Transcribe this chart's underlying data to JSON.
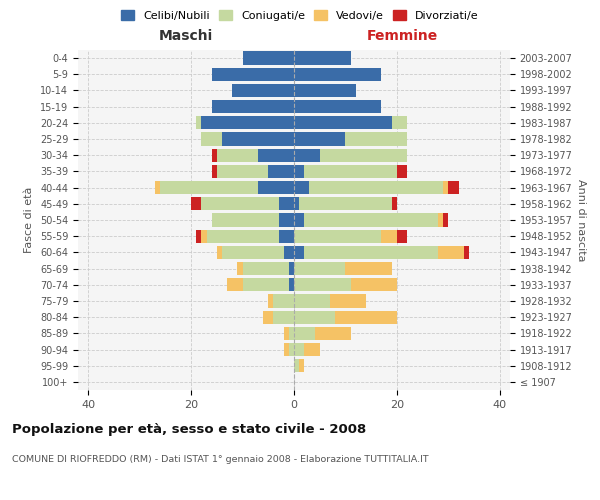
{
  "age_groups": [
    "100+",
    "95-99",
    "90-94",
    "85-89",
    "80-84",
    "75-79",
    "70-74",
    "65-69",
    "60-64",
    "55-59",
    "50-54",
    "45-49",
    "40-44",
    "35-39",
    "30-34",
    "25-29",
    "20-24",
    "15-19",
    "10-14",
    "5-9",
    "0-4"
  ],
  "birth_years": [
    "≤ 1907",
    "1908-1912",
    "1913-1917",
    "1918-1922",
    "1923-1927",
    "1928-1932",
    "1933-1937",
    "1938-1942",
    "1943-1947",
    "1948-1952",
    "1953-1957",
    "1958-1962",
    "1963-1967",
    "1968-1972",
    "1973-1977",
    "1978-1982",
    "1983-1987",
    "1988-1992",
    "1993-1997",
    "1998-2002",
    "2003-2007"
  ],
  "colors": {
    "celibi": "#3a6ca8",
    "coniugati": "#c5d9a0",
    "vedovi": "#f5c265",
    "divorziati": "#cc2222"
  },
  "maschi": {
    "celibi": [
      0,
      0,
      0,
      0,
      0,
      0,
      1,
      1,
      2,
      3,
      3,
      3,
      7,
      5,
      7,
      14,
      18,
      16,
      12,
      16,
      10
    ],
    "coniugati": [
      0,
      0,
      1,
      1,
      4,
      4,
      9,
      9,
      12,
      14,
      13,
      15,
      19,
      10,
      8,
      4,
      1,
      0,
      0,
      0,
      0
    ],
    "vedovi": [
      0,
      0,
      1,
      1,
      2,
      1,
      3,
      1,
      1,
      1,
      0,
      0,
      1,
      0,
      0,
      0,
      0,
      0,
      0,
      0,
      0
    ],
    "divorziati": [
      0,
      0,
      0,
      0,
      0,
      0,
      0,
      0,
      0,
      1,
      0,
      2,
      0,
      1,
      1,
      0,
      0,
      0,
      0,
      0,
      0
    ]
  },
  "femmine": {
    "celibi": [
      0,
      0,
      0,
      0,
      0,
      0,
      0,
      0,
      2,
      0,
      2,
      1,
      3,
      2,
      5,
      10,
      19,
      17,
      12,
      17,
      11
    ],
    "coniugati": [
      0,
      1,
      2,
      4,
      8,
      7,
      11,
      10,
      26,
      17,
      26,
      18,
      26,
      18,
      17,
      12,
      3,
      0,
      0,
      0,
      0
    ],
    "vedovi": [
      0,
      1,
      3,
      7,
      12,
      7,
      9,
      9,
      5,
      3,
      1,
      0,
      1,
      0,
      0,
      0,
      0,
      0,
      0,
      0,
      0
    ],
    "divorziati": [
      0,
      0,
      0,
      0,
      0,
      0,
      0,
      0,
      1,
      2,
      1,
      1,
      2,
      2,
      0,
      0,
      0,
      0,
      0,
      0,
      0
    ]
  },
  "xlim": 42,
  "title": "Popolazione per età, sesso e stato civile - 2008",
  "subtitle": "COMUNE DI RIOFREDDO (RM) - Dati ISTAT 1° gennaio 2008 - Elaborazione TUTTITALIA.IT",
  "ylabel_left": "Fasce di età",
  "ylabel_right": "Anni di nascita",
  "xlabel_left": "Maschi",
  "xlabel_right": "Femmine",
  "bg_color": "#f5f5f5"
}
